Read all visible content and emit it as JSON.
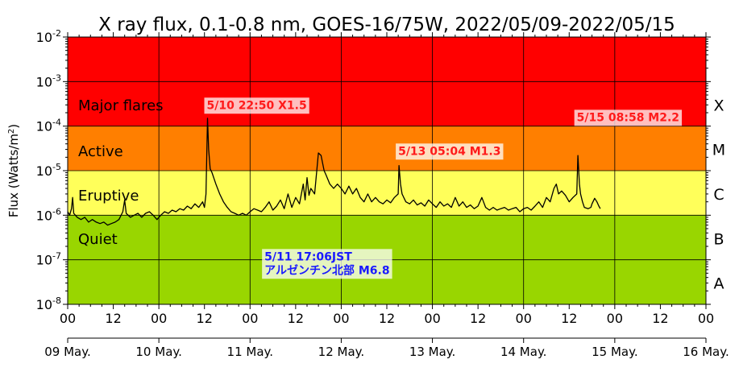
{
  "chart_data": {
    "type": "line",
    "title": "X ray flux, 0.1-0.8 nm, GOES-16/75W, 2022/05/09-2022/05/15",
    "ylabel": "Flux (Watts/m",
    "ylabel_sup": "2",
    "ylabel_end": ")",
    "y_scale": "log",
    "ylim": [
      1e-08,
      0.01
    ],
    "xlim_hours": [
      0,
      168
    ],
    "y_ticks": [
      {
        "base": "10",
        "exp": "-8",
        "value": 1e-08
      },
      {
        "base": "10",
        "exp": "-7",
        "value": 1e-07
      },
      {
        "base": "10",
        "exp": "-6",
        "value": 1e-06
      },
      {
        "base": "10",
        "exp": "-5",
        "value": 1e-05
      },
      {
        "base": "10",
        "exp": "-4",
        "value": 0.0001
      },
      {
        "base": "10",
        "exp": "-3",
        "value": 0.001
      },
      {
        "base": "10",
        "exp": "-2",
        "value": 0.01
      }
    ],
    "x_hour_ticks": [
      "00",
      "12",
      "00",
      "12",
      "00",
      "12",
      "00",
      "12",
      "00",
      "12",
      "00",
      "12",
      "00",
      "12",
      "00"
    ],
    "x_day_ticks": [
      "09 May.",
      "10 May.",
      "11 May.",
      "12 May.",
      "13 May.",
      "14 May.",
      "15 May.",
      "16 May."
    ],
    "bands": [
      {
        "name": "Major flares",
        "from": 0.0001,
        "to": 0.01,
        "color": "#ff0000"
      },
      {
        "name": "Active",
        "from": 1e-05,
        "to": 0.0001,
        "color": "#ff7f00"
      },
      {
        "name": "Eruptive",
        "from": 1e-06,
        "to": 1e-05,
        "color": "#ffff5a"
      },
      {
        "name": "Quiet",
        "from": 1e-08,
        "to": 1e-06,
        "color": "#99d600"
      }
    ],
    "flare_classes": [
      {
        "label": "X",
        "value": 0.0003
      },
      {
        "label": "M",
        "value": 3e-05
      },
      {
        "label": "C",
        "value": 3e-06
      },
      {
        "label": "B",
        "value": 3e-07
      },
      {
        "label": "A",
        "value": 3e-08
      }
    ],
    "annotations": [
      {
        "lines": [
          "5/10 22:50 X1.5"
        ],
        "x_hour": 36.8,
        "y": 0.0003,
        "color": "#ff1a1a"
      },
      {
        "lines": [
          "5/13 05:04 M1.3"
        ],
        "x_hour": 87.2,
        "y": 2.8e-05,
        "color": "#ff1a1a"
      },
      {
        "lines": [
          "5/15 08:58 M2.2"
        ],
        "x_hour": 134.2,
        "y": 0.00016,
        "color": "#ff1a1a"
      },
      {
        "lines": [
          "5/11 17:06JST",
          "アルゼンチン北部 M6.8"
        ],
        "x_hour": 52.0,
        "y": 1.2e-07,
        "color": "#1a1aff"
      }
    ],
    "series": [
      {
        "color": "#000000",
        "points": [
          [
            0,
            1.2e-06
          ],
          [
            0.5,
            1e-06
          ],
          [
            1,
            1.4e-06
          ],
          [
            1.3,
            2.5e-06
          ],
          [
            1.6,
            1.1e-06
          ],
          [
            2.5,
            9e-07
          ],
          [
            3.5,
            8e-07
          ],
          [
            4.5,
            9e-07
          ],
          [
            5.5,
            7e-07
          ],
          [
            6.5,
            8e-07
          ],
          [
            7.5,
            7e-07
          ],
          [
            8.5,
            6.5e-07
          ],
          [
            9.5,
            7e-07
          ],
          [
            10.5,
            6e-07
          ],
          [
            11.5,
            6.5e-07
          ],
          [
            12.5,
            7e-07
          ],
          [
            13.5,
            8e-07
          ],
          [
            14.5,
            1.2e-06
          ],
          [
            15,
            2.2e-06
          ],
          [
            15.4,
            1.1e-06
          ],
          [
            16.5,
            9e-07
          ],
          [
            17.5,
            1e-06
          ],
          [
            18.5,
            1.1e-06
          ],
          [
            19.5,
            9e-07
          ],
          [
            20.5,
            1.1e-06
          ],
          [
            21.5,
            1.2e-06
          ],
          [
            22.5,
            1e-06
          ],
          [
            23.5,
            8e-07
          ],
          [
            24.5,
            1e-06
          ],
          [
            25.5,
            1.2e-06
          ],
          [
            26.5,
            1.1e-06
          ],
          [
            27.5,
            1.3e-06
          ],
          [
            28.5,
            1.2e-06
          ],
          [
            29.5,
            1.4e-06
          ],
          [
            30.5,
            1.3e-06
          ],
          [
            31.5,
            1.6e-06
          ],
          [
            32.5,
            1.4e-06
          ],
          [
            33.5,
            1.8e-06
          ],
          [
            34.5,
            1.5e-06
          ],
          [
            35.5,
            2e-06
          ],
          [
            36,
            1.5e-06
          ],
          [
            36.4,
            3e-06
          ],
          [
            36.8,
            0.00015
          ],
          [
            37.1,
            3e-05
          ],
          [
            37.5,
            1.1e-05
          ],
          [
            38,
            9e-06
          ],
          [
            39,
            5e-06
          ],
          [
            40,
            3e-06
          ],
          [
            41,
            2e-06
          ],
          [
            42,
            1.5e-06
          ],
          [
            43,
            1.2e-06
          ],
          [
            44,
            1.1e-06
          ],
          [
            45,
            1e-06
          ],
          [
            46,
            1.1e-06
          ],
          [
            47,
            1e-06
          ],
          [
            48,
            1.2e-06
          ],
          [
            49,
            1.4e-06
          ],
          [
            50,
            1.3e-06
          ],
          [
            51,
            1.2e-06
          ],
          [
            52,
            1.5e-06
          ],
          [
            53,
            2e-06
          ],
          [
            54,
            1.3e-06
          ],
          [
            55,
            1.6e-06
          ],
          [
            56,
            2.2e-06
          ],
          [
            57,
            1.4e-06
          ],
          [
            58,
            3e-06
          ],
          [
            59,
            1.5e-06
          ],
          [
            60,
            2.5e-06
          ],
          [
            61,
            1.8e-06
          ],
          [
            62,
            5e-06
          ],
          [
            62.5,
            2.2e-06
          ],
          [
            63,
            7e-06
          ],
          [
            63.5,
            2.8e-06
          ],
          [
            64,
            4e-06
          ],
          [
            65,
            3e-06
          ],
          [
            66,
            2.5e-05
          ],
          [
            66.7,
            2.2e-05
          ],
          [
            67.5,
            1e-05
          ],
          [
            68,
            8e-06
          ],
          [
            69,
            5e-06
          ],
          [
            70,
            4e-06
          ],
          [
            71,
            5e-06
          ],
          [
            72,
            4e-06
          ],
          [
            73,
            3e-06
          ],
          [
            74,
            4.5e-06
          ],
          [
            75,
            3e-06
          ],
          [
            76,
            4e-06
          ],
          [
            77,
            2.5e-06
          ],
          [
            78,
            2e-06
          ],
          [
            79,
            3e-06
          ],
          [
            80,
            2e-06
          ],
          [
            81,
            2.5e-06
          ],
          [
            82,
            2e-06
          ],
          [
            83,
            1.8e-06
          ],
          [
            84,
            2.2e-06
          ],
          [
            85,
            1.9e-06
          ],
          [
            86,
            2.5e-06
          ],
          [
            87,
            3e-06
          ],
          [
            87.2,
            1.3e-05
          ],
          [
            87.6,
            5e-06
          ],
          [
            88,
            3e-06
          ],
          [
            89,
            2e-06
          ],
          [
            90,
            1.8e-06
          ],
          [
            91,
            2.2e-06
          ],
          [
            92,
            1.7e-06
          ],
          [
            93,
            1.9e-06
          ],
          [
            94,
            1.6e-06
          ],
          [
            95,
            2.2e-06
          ],
          [
            96,
            1.8e-06
          ],
          [
            97,
            1.5e-06
          ],
          [
            98,
            2e-06
          ],
          [
            99,
            1.6e-06
          ],
          [
            100,
            1.8e-06
          ],
          [
            101,
            1.5e-06
          ],
          [
            102,
            2.5e-06
          ],
          [
            103,
            1.6e-06
          ],
          [
            104,
            2e-06
          ],
          [
            105,
            1.5e-06
          ],
          [
            106,
            1.7e-06
          ],
          [
            107,
            1.4e-06
          ],
          [
            108,
            1.6e-06
          ],
          [
            109,
            2.5e-06
          ],
          [
            110,
            1.5e-06
          ],
          [
            111,
            1.3e-06
          ],
          [
            112,
            1.5e-06
          ],
          [
            113,
            1.3e-06
          ],
          [
            114,
            1.4e-06
          ],
          [
            115,
            1.5e-06
          ],
          [
            116,
            1.3e-06
          ],
          [
            117,
            1.4e-06
          ],
          [
            118,
            1.5e-06
          ],
          [
            119,
            1.2e-06
          ],
          [
            120,
            1.4e-06
          ],
          [
            121,
            1.5e-06
          ],
          [
            122,
            1.3e-06
          ],
          [
            123,
            1.6e-06
          ],
          [
            124,
            2e-06
          ],
          [
            125,
            1.5e-06
          ],
          [
            126,
            2.5e-06
          ],
          [
            127,
            2e-06
          ],
          [
            128,
            4e-06
          ],
          [
            128.6,
            5e-06
          ],
          [
            129.2,
            3e-06
          ],
          [
            130,
            3.5e-06
          ],
          [
            131,
            2.8e-06
          ],
          [
            132,
            2e-06
          ],
          [
            133,
            2.5e-06
          ],
          [
            134,
            3e-06
          ],
          [
            134.3,
            2.2e-05
          ],
          [
            134.7,
            5e-06
          ],
          [
            135,
            3e-06
          ],
          [
            135.5,
            2e-06
          ],
          [
            136,
            1.5e-06
          ],
          [
            137,
            1.4e-06
          ],
          [
            137.7,
            1.5e-06
          ],
          [
            138,
            1.8e-06
          ],
          [
            138.7,
            2.4e-06
          ],
          [
            139.3,
            2e-06
          ],
          [
            139.8,
            1.6e-06
          ],
          [
            140.2,
            1.4e-06
          ]
        ]
      }
    ]
  }
}
